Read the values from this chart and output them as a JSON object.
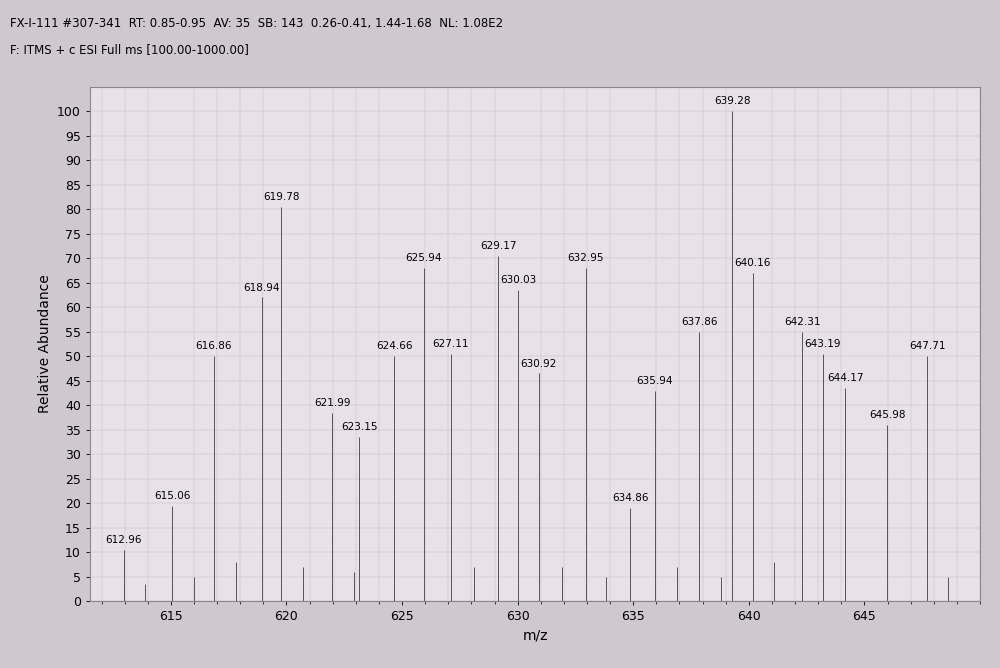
{
  "title_line1": "FX-I-111 #307-341  RT: 0.85-0.95  AV: 35  SB: 143  0.26-0.41, 1.44-1.68  NL: 1.08E2",
  "title_line2": "F: ITMS + c ESI Full ms [100.00-1000.00]",
  "xlabel": "m/z",
  "ylabel": "Relative Abundance",
  "xlim": [
    611.5,
    650.0
  ],
  "ylim": [
    0,
    105
  ],
  "yticks": [
    0,
    5,
    10,
    15,
    20,
    25,
    30,
    35,
    40,
    45,
    50,
    55,
    60,
    65,
    70,
    75,
    80,
    85,
    90,
    95,
    100
  ],
  "xticks": [
    615,
    620,
    625,
    630,
    635,
    640,
    645
  ],
  "peaks": [
    {
      "mz": 612.96,
      "intensity": 10.5
    },
    {
      "mz": 613.9,
      "intensity": 3.5
    },
    {
      "mz": 615.06,
      "intensity": 19.5
    },
    {
      "mz": 616.0,
      "intensity": 5.0
    },
    {
      "mz": 616.86,
      "intensity": 50.0
    },
    {
      "mz": 617.8,
      "intensity": 8.0
    },
    {
      "mz": 618.94,
      "intensity": 62.0
    },
    {
      "mz": 619.78,
      "intensity": 80.5
    },
    {
      "mz": 620.7,
      "intensity": 7.0
    },
    {
      "mz": 621.99,
      "intensity": 38.5
    },
    {
      "mz": 622.9,
      "intensity": 6.0
    },
    {
      "mz": 623.15,
      "intensity": 33.5
    },
    {
      "mz": 624.66,
      "intensity": 50.0
    },
    {
      "mz": 625.94,
      "intensity": 68.0
    },
    {
      "mz": 627.11,
      "intensity": 50.5
    },
    {
      "mz": 628.1,
      "intensity": 7.0
    },
    {
      "mz": 629.17,
      "intensity": 70.5
    },
    {
      "mz": 630.03,
      "intensity": 63.5
    },
    {
      "mz": 630.92,
      "intensity": 46.5
    },
    {
      "mz": 631.9,
      "intensity": 7.0
    },
    {
      "mz": 632.95,
      "intensity": 68.0
    },
    {
      "mz": 633.8,
      "intensity": 5.0
    },
    {
      "mz": 634.86,
      "intensity": 19.0
    },
    {
      "mz": 635.94,
      "intensity": 43.0
    },
    {
      "mz": 636.9,
      "intensity": 7.0
    },
    {
      "mz": 637.86,
      "intensity": 55.0
    },
    {
      "mz": 638.8,
      "intensity": 5.0
    },
    {
      "mz": 639.28,
      "intensity": 100.0
    },
    {
      "mz": 640.16,
      "intensity": 67.0
    },
    {
      "mz": 641.1,
      "intensity": 8.0
    },
    {
      "mz": 642.31,
      "intensity": 55.0
    },
    {
      "mz": 643.19,
      "intensity": 50.5
    },
    {
      "mz": 644.17,
      "intensity": 43.5
    },
    {
      "mz": 645.98,
      "intensity": 36.0
    },
    {
      "mz": 647.71,
      "intensity": 50.0
    },
    {
      "mz": 648.6,
      "intensity": 5.0
    }
  ],
  "labeled_peaks": [
    {
      "mz": 612.96,
      "intensity": 10.5,
      "label": "612.96"
    },
    {
      "mz": 615.06,
      "intensity": 19.5,
      "label": "615.06"
    },
    {
      "mz": 616.86,
      "intensity": 50.0,
      "label": "616.86"
    },
    {
      "mz": 618.94,
      "intensity": 62.0,
      "label": "618.94"
    },
    {
      "mz": 619.78,
      "intensity": 80.5,
      "label": "619.78"
    },
    {
      "mz": 621.99,
      "intensity": 38.5,
      "label": "621.99"
    },
    {
      "mz": 623.15,
      "intensity": 33.5,
      "label": "623.15"
    },
    {
      "mz": 624.66,
      "intensity": 50.0,
      "label": "624.66"
    },
    {
      "mz": 625.94,
      "intensity": 68.0,
      "label": "625.94"
    },
    {
      "mz": 627.11,
      "intensity": 50.5,
      "label": "627.11"
    },
    {
      "mz": 629.17,
      "intensity": 70.5,
      "label": "629.17"
    },
    {
      "mz": 630.03,
      "intensity": 63.5,
      "label": "630.03"
    },
    {
      "mz": 630.92,
      "intensity": 46.5,
      "label": "630.92"
    },
    {
      "mz": 632.95,
      "intensity": 68.0,
      "label": "632.95"
    },
    {
      "mz": 634.86,
      "intensity": 19.0,
      "label": "634.86"
    },
    {
      "mz": 635.94,
      "intensity": 43.0,
      "label": "635.94"
    },
    {
      "mz": 637.86,
      "intensity": 55.0,
      "label": "637.86"
    },
    {
      "mz": 639.28,
      "intensity": 100.0,
      "label": "639.28"
    },
    {
      "mz": 640.16,
      "intensity": 67.0,
      "label": "640.16"
    },
    {
      "mz": 642.31,
      "intensity": 55.0,
      "label": "642.31"
    },
    {
      "mz": 643.19,
      "intensity": 50.5,
      "label": "643.19"
    },
    {
      "mz": 644.17,
      "intensity": 43.5,
      "label": "644.17"
    },
    {
      "mz": 645.98,
      "intensity": 36.0,
      "label": "645.98"
    },
    {
      "mz": 647.71,
      "intensity": 50.0,
      "label": "647.71"
    }
  ],
  "fig_bg_color": "#cfc8cf",
  "plot_bg_color": "#e8e2e8",
  "line_color": "#555555",
  "label_fontsize": 7.5,
  "axis_fontsize": 9,
  "header_fontsize": 8.5
}
